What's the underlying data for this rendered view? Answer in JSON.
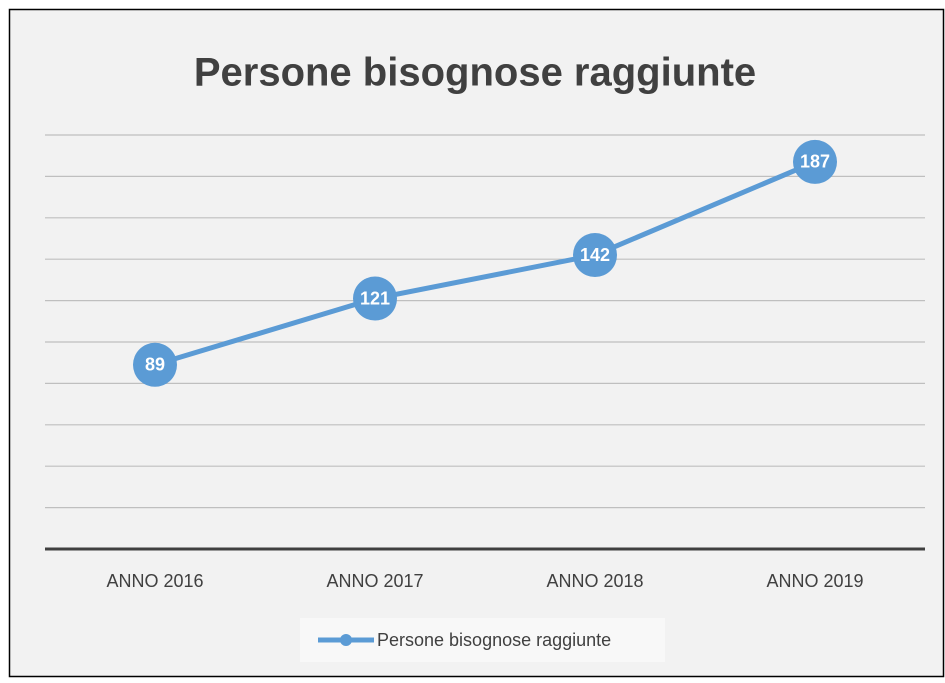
{
  "chart_data": {
    "type": "line",
    "title": "Persone bisognose raggiunte",
    "categories": [
      "ANNO 2016",
      "ANNO 2017",
      "ANNO 2018",
      "ANNO 2019"
    ],
    "series": [
      {
        "name": "Persone bisognose raggiunte",
        "color": "#5b9bd5",
        "values": [
          89,
          121,
          142,
          187
        ]
      }
    ],
    "ylim": [
      0,
      200
    ],
    "yticks": [
      0,
      20,
      40,
      60,
      80,
      100,
      120,
      140,
      160,
      180,
      200
    ],
    "grid": true,
    "legend": "bottom"
  }
}
